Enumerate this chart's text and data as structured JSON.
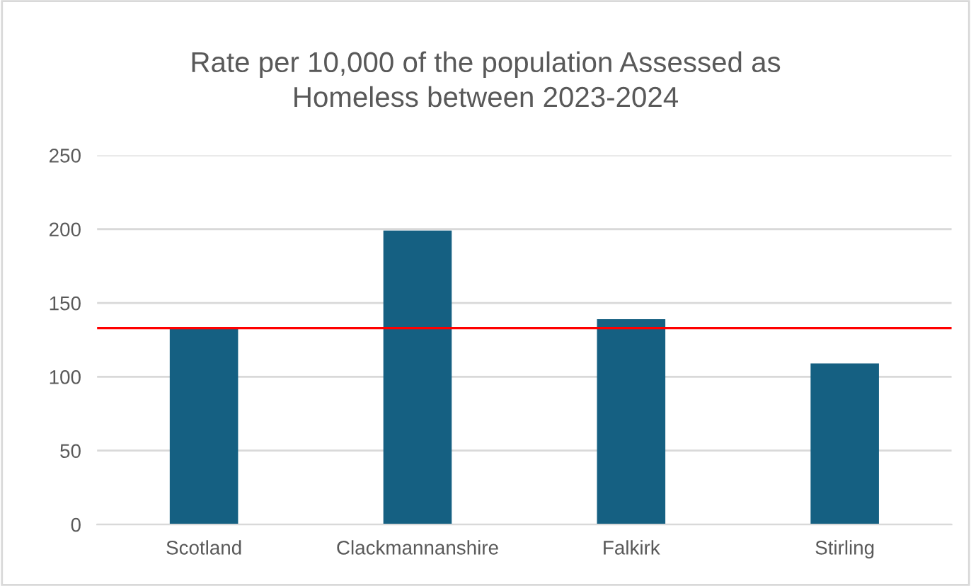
{
  "chart_data": {
    "type": "bar",
    "title": "Rate per 10,000 of the population Assessed as\nHomeless between 2023-2024",
    "categories": [
      "Scotland",
      "Clackmannanshire",
      "Falkirk",
      "Stirling"
    ],
    "values": [
      133,
      199,
      139,
      109
    ],
    "color": "#156082",
    "ylim": [
      0,
      250
    ],
    "yticks": [
      0,
      50,
      100,
      150,
      200,
      250
    ],
    "grid": "y",
    "ref_lines": [
      {
        "axis": "y",
        "value": 133,
        "color": "#ff0000",
        "line_style": "solid"
      }
    ]
  }
}
